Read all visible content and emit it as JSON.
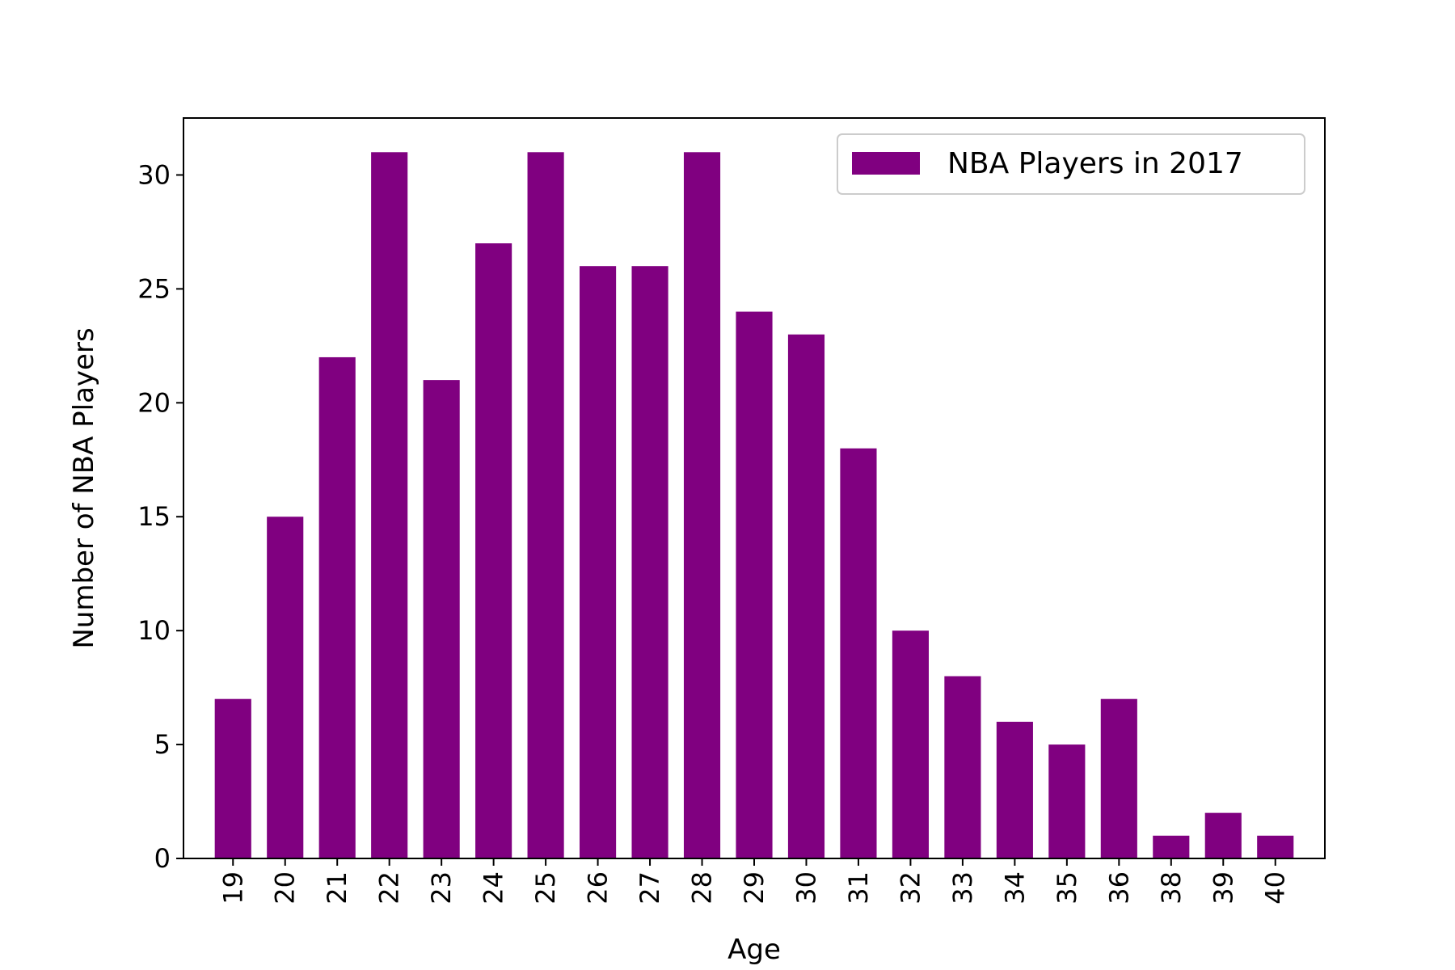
{
  "chart_data": {
    "type": "bar",
    "title": "",
    "xlabel": "Age",
    "ylabel": "Number of NBA Players",
    "categories": [
      "19",
      "20",
      "21",
      "22",
      "23",
      "24",
      "25",
      "26",
      "27",
      "28",
      "29",
      "30",
      "31",
      "32",
      "33",
      "34",
      "35",
      "36",
      "38",
      "39",
      "40"
    ],
    "series": [
      {
        "name": "NBA Players in 2017",
        "values": [
          7,
          15,
          22,
          31,
          21,
          27,
          31,
          26,
          26,
          31,
          24,
          23,
          18,
          10,
          8,
          6,
          5,
          7,
          1,
          2,
          1
        ]
      }
    ],
    "ylim": [
      0,
      32.5
    ],
    "yticks": [
      0,
      5,
      10,
      15,
      20,
      25,
      30
    ],
    "bar_color": "#800080",
    "legend_position": "top-right",
    "grid": false,
    "x_tick_rotation": "vertical"
  }
}
